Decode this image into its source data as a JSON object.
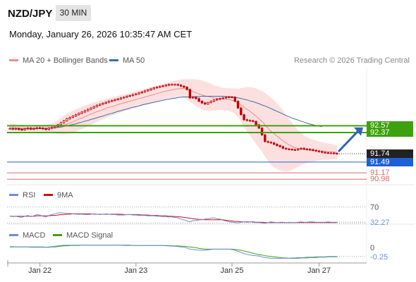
{
  "header": {
    "symbol": "NZD/JPY",
    "timeframe": "30 MIN",
    "datetime": "Monday, January 26, 2026 10:35:47 AM CET",
    "copyright": "Research © 2026 Trading Central"
  },
  "colors": {
    "band_fill": "#fbd6d6",
    "ma20": "#f08c8c",
    "ma50": "#3a6db0",
    "candle": "#c00000",
    "green": "#3fa010",
    "blue": "#1f5fd6",
    "red_line": "#e06666",
    "rsi": "#6a8fd8",
    "rsi_ma": "#cc1111",
    "macd": "#6a8fd8",
    "macd_signal": "#3fa010"
  },
  "chart_data": [
    {
      "type": "candlestick",
      "legend": [
        {
          "label": "MA 20 + Bollinger Bands",
          "color": "#f08c8c"
        },
        {
          "label": "MA 50",
          "color": "#3a6db0"
        }
      ],
      "ylim": [
        90.9,
        94.3
      ],
      "close": [
        92.49,
        92.47,
        92.49,
        92.46,
        92.45,
        92.48,
        92.5,
        92.47,
        92.49,
        92.51,
        92.5,
        92.48,
        92.46,
        92.5,
        92.52,
        92.55,
        92.6,
        92.66,
        92.72,
        92.78,
        92.82,
        92.86,
        92.9,
        92.94,
        92.98,
        93.02,
        93.06,
        93.1,
        93.14,
        93.18,
        93.21,
        93.24,
        93.27,
        93.3,
        93.32,
        93.35,
        93.37,
        93.4,
        93.42,
        93.45,
        93.47,
        93.5,
        93.52,
        93.55,
        93.58,
        93.61,
        93.64,
        93.67,
        93.7,
        93.72,
        93.74,
        93.76,
        93.78,
        93.8,
        93.8,
        93.8,
        93.78,
        93.75,
        93.72,
        93.65,
        93.4,
        93.42,
        93.38,
        93.3,
        93.25,
        93.22,
        93.26,
        93.3,
        93.34,
        93.36,
        93.38,
        93.4,
        93.42,
        93.43,
        93.42,
        93.3,
        93.1,
        92.9,
        92.75,
        92.73,
        92.72,
        92.7,
        92.6,
        92.5,
        92.3,
        92.1,
        92.08,
        92.06,
        92.02,
        91.98,
        91.95,
        91.9,
        91.88,
        91.87,
        91.86,
        91.85,
        91.88,
        91.9,
        91.88,
        91.87,
        91.86,
        91.84,
        91.82,
        91.8,
        91.78,
        91.77,
        91.76,
        91.76,
        91.75,
        91.74
      ],
      "ma20": [
        92.52,
        92.52,
        92.51,
        92.5,
        92.5,
        92.5,
        92.5,
        92.5,
        92.5,
        92.5,
        92.5,
        92.5,
        92.5,
        92.5,
        92.5,
        92.51,
        92.53,
        92.56,
        92.59,
        92.62,
        92.65,
        92.69,
        92.73,
        92.77,
        92.8,
        92.84,
        92.88,
        92.92,
        92.95,
        92.99,
        93.02,
        93.05,
        93.09,
        93.12,
        93.14,
        93.17,
        93.2,
        93.23,
        93.25,
        93.28,
        93.3,
        93.33,
        93.35,
        93.38,
        93.4,
        93.43,
        93.45,
        93.48,
        93.5,
        93.53,
        93.55,
        93.58,
        93.6,
        93.62,
        93.64,
        93.66,
        93.67,
        93.68,
        93.68,
        93.66,
        93.62,
        93.59,
        93.55,
        93.52,
        93.49,
        93.46,
        93.44,
        93.42,
        93.4,
        93.39,
        93.38,
        93.37,
        93.36,
        93.35,
        93.33,
        93.3,
        93.25,
        93.19,
        93.13,
        93.06,
        93.0,
        92.93,
        92.86,
        92.78,
        92.7,
        92.6,
        92.5,
        92.41,
        92.34,
        92.26,
        92.19,
        92.12,
        92.06,
        92.0,
        91.96,
        91.92,
        91.89,
        91.88,
        91.86,
        91.85,
        91.84,
        91.83,
        91.83,
        91.82,
        91.82,
        91.81,
        91.8,
        91.8,
        91.79,
        91.78
      ],
      "band_width": [
        0.12,
        0.11,
        0.1,
        0.1,
        0.1,
        0.09,
        0.09,
        0.09,
        0.1,
        0.1,
        0.1,
        0.1,
        0.11,
        0.12,
        0.14,
        0.17,
        0.21,
        0.25,
        0.28,
        0.3,
        0.32,
        0.33,
        0.33,
        0.33,
        0.33,
        0.33,
        0.32,
        0.32,
        0.31,
        0.3,
        0.3,
        0.29,
        0.28,
        0.28,
        0.27,
        0.27,
        0.26,
        0.26,
        0.25,
        0.25,
        0.25,
        0.25,
        0.24,
        0.24,
        0.24,
        0.24,
        0.24,
        0.24,
        0.24,
        0.24,
        0.24,
        0.24,
        0.24,
        0.24,
        0.25,
        0.26,
        0.26,
        0.27,
        0.28,
        0.3,
        0.34,
        0.37,
        0.4,
        0.42,
        0.43,
        0.43,
        0.42,
        0.4,
        0.38,
        0.36,
        0.34,
        0.33,
        0.33,
        0.34,
        0.35,
        0.38,
        0.42,
        0.5,
        0.58,
        0.66,
        0.72,
        0.78,
        0.82,
        0.86,
        0.9,
        0.95,
        0.98,
        1.0,
        1.0,
        0.98,
        0.95,
        0.9,
        0.85,
        0.78,
        0.7,
        0.62,
        0.55,
        0.48,
        0.42,
        0.38,
        0.35,
        0.32,
        0.3,
        0.28,
        0.26,
        0.25,
        0.24,
        0.23,
        0.22,
        0.21
      ],
      "ma50": [
        92.48,
        92.48,
        92.48,
        92.48,
        92.48,
        92.48,
        92.48,
        92.48,
        92.48,
        92.49,
        92.49,
        92.49,
        92.49,
        92.5,
        92.5,
        92.51,
        92.52,
        92.53,
        92.55,
        92.57,
        92.59,
        92.61,
        92.63,
        92.66,
        92.68,
        92.71,
        92.73,
        92.76,
        92.78,
        92.81,
        92.84,
        92.86,
        92.89,
        92.92,
        92.94,
        92.97,
        93.0,
        93.02,
        93.05,
        93.07,
        93.1,
        93.12,
        93.14,
        93.16,
        93.19,
        93.21,
        93.23,
        93.25,
        93.27,
        93.29,
        93.31,
        93.33,
        93.35,
        93.36,
        93.38,
        93.39,
        93.41,
        93.42,
        93.43,
        93.43,
        93.43,
        93.44,
        93.44,
        93.44,
        93.45,
        93.45,
        93.45,
        93.45,
        93.45,
        93.45,
        93.45,
        93.45,
        93.44,
        93.44,
        93.43,
        93.42,
        93.4,
        93.38,
        93.36,
        93.34,
        93.31,
        93.29,
        93.26,
        93.23,
        93.19,
        93.16,
        93.12,
        93.08,
        93.04,
        93.0,
        92.96,
        92.92,
        92.88,
        92.84,
        92.8,
        92.77,
        92.74,
        92.71,
        92.68,
        92.65,
        92.62,
        92.6,
        92.58,
        92.56,
        92.54
      ],
      "levels": [
        {
          "value": 92.57,
          "label": "92.57",
          "color": "#3fa010"
        },
        {
          "value": 92.37,
          "label": "92.37",
          "color": "#3fa010"
        },
        {
          "value": 91.74,
          "label": "91.74",
          "color": "#222222"
        },
        {
          "value": 91.49,
          "label": "91.49",
          "color": "#1f5fd6"
        },
        {
          "value": 91.17,
          "label": "91.17",
          "color": "#e06666"
        },
        {
          "value": 90.98,
          "label": "90.98",
          "color": "#e06666"
        }
      ],
      "forecast": {
        "from": 91.74,
        "to": 92.5
      }
    },
    {
      "type": "line",
      "legend": [
        {
          "label": "RSI",
          "color": "#6a8fd8"
        },
        {
          "label": "9MA",
          "color": "#cc1111"
        }
      ],
      "ylim": [
        20,
        80
      ],
      "level_lines": [
        70,
        30
      ],
      "tick_labels": [
        {
          "value": 70,
          "label": "70"
        }
      ],
      "last_value": {
        "value": 32.27,
        "label": "32.27"
      },
      "rsi": [
        48,
        46,
        47,
        45,
        44,
        47,
        49,
        46,
        48,
        51,
        50,
        47,
        45,
        49,
        51,
        53,
        55,
        56,
        55,
        54,
        54,
        53,
        52,
        52,
        52,
        51,
        51,
        52,
        53,
        52,
        51,
        52,
        53,
        52,
        51,
        51,
        50,
        50,
        50,
        51,
        51,
        50,
        50,
        49,
        49,
        49,
        48,
        48,
        48,
        47,
        47,
        46,
        46,
        45,
        45,
        44,
        43,
        40,
        38,
        35,
        33,
        36,
        36,
        38,
        38,
        40,
        41,
        42,
        43,
        41,
        40,
        37,
        35,
        33,
        32,
        31,
        30,
        32,
        33,
        32,
        33,
        32,
        31,
        31,
        30,
        29,
        31,
        33,
        32,
        31,
        32,
        32,
        31,
        32,
        31,
        31,
        32,
        33,
        32,
        32,
        33,
        33,
        32,
        32,
        32,
        32,
        33,
        32,
        32,
        32
      ],
      "rsi_ma": [
        47,
        47,
        47,
        47,
        47,
        47,
        47,
        47,
        47,
        48,
        48,
        48,
        48,
        48,
        49,
        49,
        50,
        51,
        51,
        52,
        52,
        53,
        53,
        53,
        53,
        53,
        53,
        53,
        52,
        52,
        52,
        52,
        52,
        52,
        52,
        52,
        52,
        52,
        51,
        51,
        51,
        51,
        51,
        51,
        50,
        50,
        50,
        49,
        49,
        49,
        48,
        48,
        48,
        47,
        47,
        46,
        46,
        45,
        44,
        43,
        42,
        41,
        40,
        39,
        39,
        38,
        38,
        38,
        38,
        38,
        38,
        38,
        37,
        36,
        35,
        34,
        34,
        33,
        33,
        33,
        33,
        33,
        32,
        32,
        32,
        31,
        31,
        31,
        31,
        31,
        31,
        31,
        31,
        31,
        31,
        31,
        31,
        31,
        31,
        31,
        31,
        31,
        31,
        31,
        31,
        31,
        31,
        31,
        31,
        31
      ]
    },
    {
      "type": "line",
      "legend": [
        {
          "label": "MACD",
          "color": "#6a8fd8"
        },
        {
          "label": "MACD Signal",
          "color": "#3fa010"
        }
      ],
      "ylim": [
        -0.35,
        0.15
      ],
      "tick_labels": [
        {
          "value": 0,
          "label": "0"
        }
      ],
      "last_value": {
        "value": -0.25,
        "label": "-0.25"
      },
      "macd": [
        0.02,
        0.02,
        0.01,
        0.01,
        0.01,
        0.01,
        0.01,
        0.0,
        0.0,
        0.0,
        0.0,
        0.0,
        0.0,
        0.01,
        0.02,
        0.03,
        0.04,
        0.05,
        0.06,
        0.06,
        0.06,
        0.06,
        0.06,
        0.06,
        0.06,
        0.06,
        0.06,
        0.06,
        0.06,
        0.06,
        0.06,
        0.06,
        0.06,
        0.06,
        0.06,
        0.06,
        0.06,
        0.06,
        0.05,
        0.05,
        0.05,
        0.05,
        0.05,
        0.05,
        0.05,
        0.05,
        0.05,
        0.05,
        0.05,
        0.05,
        0.05,
        0.05,
        0.04,
        0.04,
        0.03,
        0.03,
        0.02,
        0.01,
        0.0,
        -0.02,
        -0.05,
        -0.06,
        -0.07,
        -0.08,
        -0.08,
        -0.08,
        -0.07,
        -0.06,
        -0.05,
        -0.05,
        -0.05,
        -0.05,
        -0.05,
        -0.05,
        -0.06,
        -0.08,
        -0.11,
        -0.14,
        -0.17,
        -0.19,
        -0.21,
        -0.22,
        -0.23,
        -0.24,
        -0.26,
        -0.28,
        -0.29,
        -0.3,
        -0.3,
        -0.3,
        -0.3,
        -0.3,
        -0.3,
        -0.3,
        -0.29,
        -0.29,
        -0.28,
        -0.28,
        -0.28,
        -0.27,
        -0.27,
        -0.27,
        -0.26,
        -0.26,
        -0.26,
        -0.26,
        -0.25,
        -0.25,
        -0.25,
        -0.25
      ],
      "signal": [
        0.01,
        0.01,
        0.01,
        0.01,
        0.01,
        0.01,
        0.01,
        0.01,
        0.01,
        0.01,
        0.01,
        0.01,
        0.0,
        0.0,
        0.01,
        0.01,
        0.02,
        0.03,
        0.04,
        0.04,
        0.05,
        0.05,
        0.05,
        0.05,
        0.06,
        0.06,
        0.06,
        0.06,
        0.06,
        0.06,
        0.06,
        0.06,
        0.06,
        0.06,
        0.06,
        0.06,
        0.06,
        0.06,
        0.06,
        0.06,
        0.06,
        0.05,
        0.05,
        0.05,
        0.05,
        0.05,
        0.05,
        0.05,
        0.05,
        0.05,
        0.05,
        0.05,
        0.05,
        0.05,
        0.04,
        0.04,
        0.04,
        0.03,
        0.03,
        0.02,
        0.01,
        0.0,
        -0.01,
        -0.03,
        -0.04,
        -0.05,
        -0.05,
        -0.05,
        -0.05,
        -0.05,
        -0.05,
        -0.05,
        -0.05,
        -0.05,
        -0.05,
        -0.06,
        -0.07,
        -0.08,
        -0.1,
        -0.12,
        -0.14,
        -0.16,
        -0.18,
        -0.2,
        -0.21,
        -0.23,
        -0.24,
        -0.25,
        -0.26,
        -0.27,
        -0.28,
        -0.29,
        -0.29,
        -0.3,
        -0.3,
        -0.3,
        -0.3,
        -0.29,
        -0.29,
        -0.29,
        -0.28,
        -0.28,
        -0.28,
        -0.27,
        -0.27,
        -0.27,
        -0.26,
        -0.26,
        -0.26,
        -0.26
      ]
    }
  ],
  "x_axis": {
    "ticks": [
      {
        "index": 10,
        "label": "Jan 22"
      },
      {
        "index": 42,
        "label": "Jan 23"
      },
      {
        "index": 74,
        "label": "Jan 25"
      },
      {
        "index": 103,
        "label": "Jan 27"
      }
    ]
  }
}
